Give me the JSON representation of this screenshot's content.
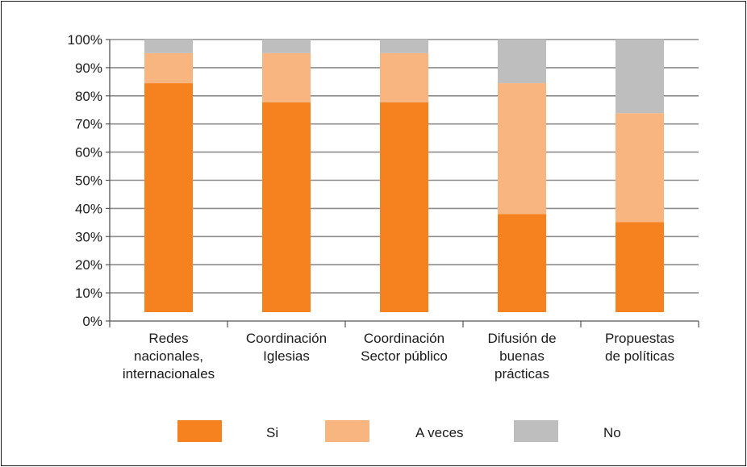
{
  "chart_data": {
    "type": "bar",
    "stacked": true,
    "percent": true,
    "categories": [
      [
        "Redes",
        "nacionales,",
        "internacionales"
      ],
      [
        "Coordinación",
        "Iglesias"
      ],
      [
        "Coordinación",
        "Sector público"
      ],
      [
        "Difusión de",
        "buenas",
        "prácticas"
      ],
      [
        "Propuestas",
        "de políticas"
      ]
    ],
    "series": [
      {
        "name": "Si",
        "color": "#F5821F",
        "values": [
          84,
          77,
          77,
          36,
          33
        ]
      },
      {
        "name": "A veces",
        "color": "#F9B57F",
        "values": [
          11,
          18,
          18,
          48,
          40
        ]
      },
      {
        "name": "No",
        "color": "#BEBEBE",
        "values": [
          5,
          5,
          5,
          16,
          27
        ]
      }
    ],
    "y_ticks": [
      "0%",
      "10%",
      "20%",
      "30%",
      "40%",
      "50%",
      "60%",
      "70%",
      "80%",
      "90%",
      "100%"
    ],
    "ylim": [
      0,
      100
    ],
    "grid": true,
    "legend_position": "bottom",
    "title": "",
    "xlabel": "",
    "ylabel": ""
  }
}
